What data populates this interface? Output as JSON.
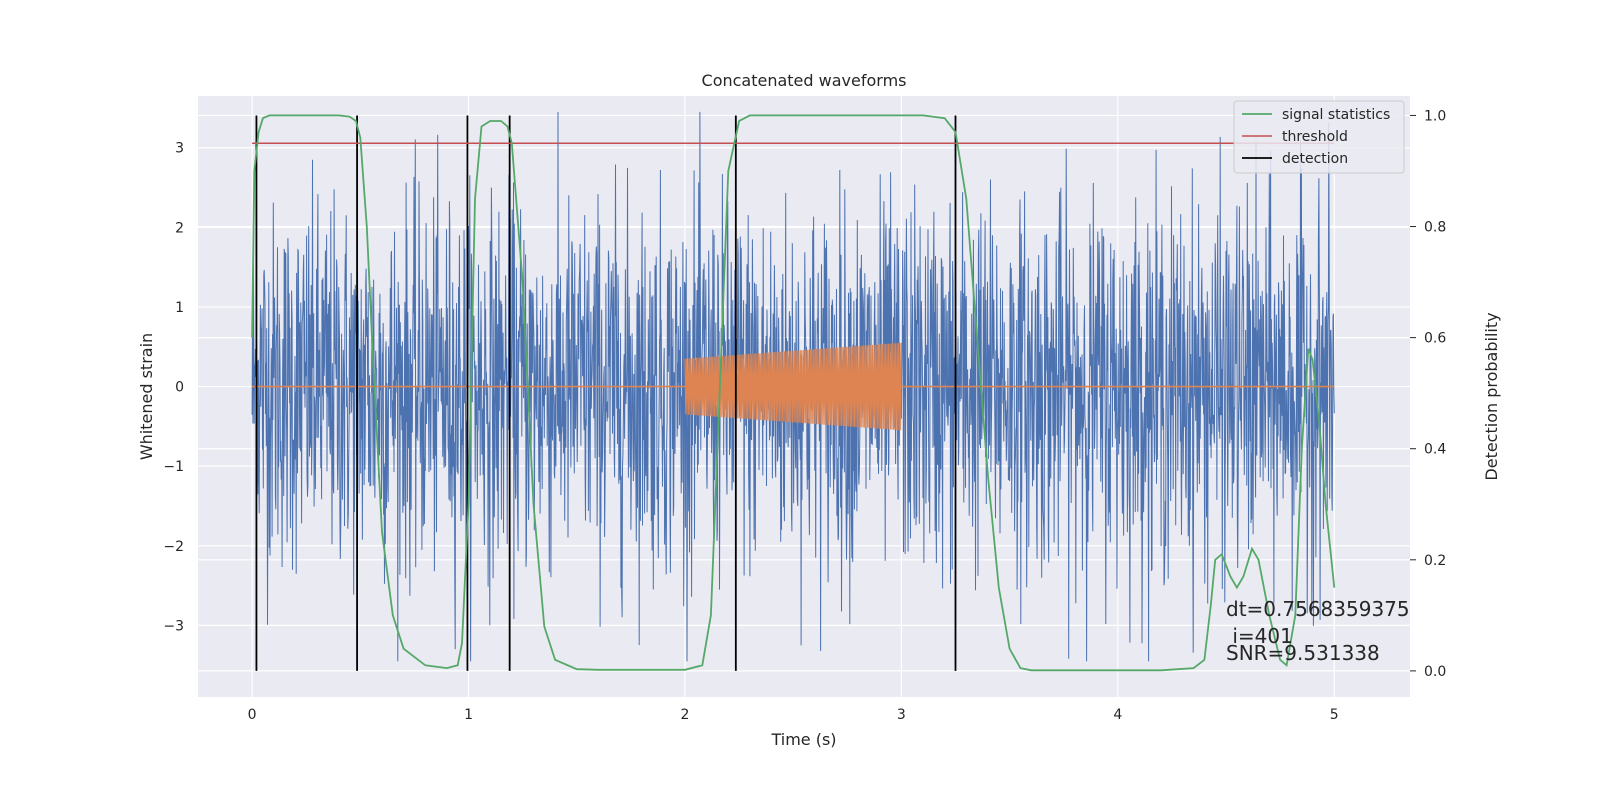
{
  "chart_data": {
    "type": "line",
    "title": "Concatenated waveforms",
    "xlabel": "Time (s)",
    "ylabel": "Whitened strain",
    "ylabel_right": "Detection probability",
    "xlim": [
      -0.25,
      5.35
    ],
    "ylim": [
      -3.9,
      3.65
    ],
    "ylim_right": [
      -0.047,
      1.035
    ],
    "xticks": [
      0,
      1,
      2,
      3,
      4,
      5
    ],
    "yticks": [
      -3,
      -2,
      -1,
      0,
      1,
      2,
      3
    ],
    "yticks_right": [
      0.0,
      0.2,
      0.4,
      0.6,
      0.8,
      1.0
    ],
    "ytick_labels": [
      "−3",
      "−2",
      "−1",
      "0",
      "1",
      "2",
      "3"
    ],
    "yticks_right_labels": [
      "0.0",
      "0.2",
      "0.4",
      "0.6",
      "0.8",
      "1.0"
    ],
    "grid": true,
    "legend_position": "top-right",
    "legend": [
      {
        "label": "signal statistics",
        "color": "#55a868"
      },
      {
        "label": "threshold",
        "color": "#c44e52"
      },
      {
        "label": "detection",
        "color": "#000000"
      }
    ],
    "strain": {
      "x_start": 0,
      "x_end": 5,
      "typical_abs": 1.2,
      "peak_abs": 3.45,
      "color": "#4c72b0"
    },
    "injected_waveform": {
      "baseline_x": [
        0,
        5
      ],
      "chirp_x_start": 2.0,
      "chirp_x_end": 3.0,
      "amplitude_start": 0.35,
      "amplitude_end": 0.55,
      "color": "#dd8452"
    },
    "signal_statistics": {
      "x": [
        0.0,
        0.01,
        0.03,
        0.05,
        0.08,
        0.1,
        0.2,
        0.3,
        0.4,
        0.45,
        0.48,
        0.5,
        0.53,
        0.56,
        0.6,
        0.65,
        0.7,
        0.8,
        0.9,
        0.95,
        0.97,
        1.0,
        1.03,
        1.06,
        1.1,
        1.15,
        1.18,
        1.2,
        1.25,
        1.3,
        1.35,
        1.4,
        1.5,
        1.6,
        1.8,
        2.0,
        2.08,
        2.12,
        2.16,
        2.2,
        2.25,
        2.3,
        2.4,
        2.6,
        2.8,
        3.0,
        3.1,
        3.2,
        3.25,
        3.3,
        3.35,
        3.4,
        3.45,
        3.5,
        3.55,
        3.6,
        3.8,
        4.0,
        4.2,
        4.35,
        4.4,
        4.43,
        4.45,
        4.48,
        4.52,
        4.55,
        4.58,
        4.62,
        4.65,
        4.7,
        4.75,
        4.78,
        4.82,
        4.85,
        4.88,
        4.9,
        4.93,
        4.96,
        5.0
      ],
      "y": [
        0.6,
        0.9,
        0.97,
        0.995,
        1.0,
        1.0,
        1.0,
        1.0,
        1.0,
        0.998,
        0.99,
        0.96,
        0.8,
        0.55,
        0.25,
        0.1,
        0.04,
        0.01,
        0.005,
        0.01,
        0.05,
        0.3,
        0.85,
        0.98,
        0.99,
        0.99,
        0.98,
        0.95,
        0.7,
        0.3,
        0.08,
        0.02,
        0.003,
        0.002,
        0.002,
        0.002,
        0.01,
        0.1,
        0.5,
        0.9,
        0.99,
        1.0,
        1.0,
        1.0,
        1.0,
        1.0,
        1.0,
        0.995,
        0.97,
        0.85,
        0.6,
        0.35,
        0.15,
        0.04,
        0.005,
        0.001,
        0.001,
        0.001,
        0.001,
        0.005,
        0.02,
        0.12,
        0.2,
        0.21,
        0.17,
        0.15,
        0.17,
        0.22,
        0.2,
        0.1,
        0.02,
        0.01,
        0.1,
        0.4,
        0.58,
        0.56,
        0.45,
        0.3,
        0.15
      ]
    },
    "threshold": {
      "value": 0.95,
      "x": [
        0,
        5
      ]
    },
    "detections_x": [
      0.02,
      0.485,
      0.995,
      1.19,
      2.235,
      3.25
    ]
  },
  "annotation": {
    "line1": "dt=0.7568359375",
    "line2": " i=401",
    "line3": "SNR=9.531338"
  },
  "colors": {
    "axes_bg": "#eaeaf2",
    "grid": "#ffffff"
  }
}
